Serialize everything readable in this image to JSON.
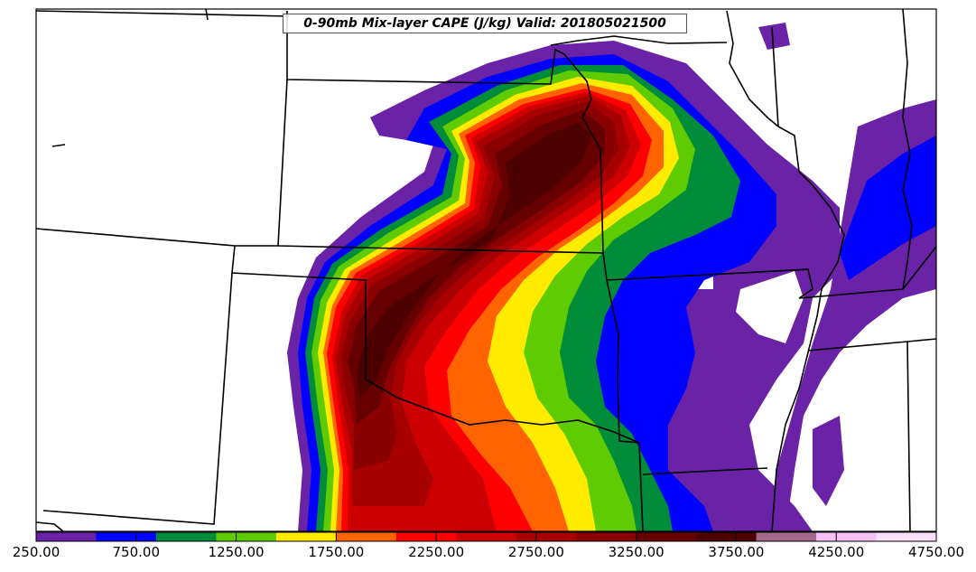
{
  "title": "0-90mb Mix-layer CAPE (J/kg) Valid: 201805021500",
  "colorbar": {
    "colors": [
      "#6a22a6",
      "#0000ff",
      "#008c38",
      "#5ecc00",
      "#ffeb00",
      "#ff6400",
      "#ff0000",
      "#cc0000",
      "#a60000",
      "#8a0000",
      "#660000",
      "#4d0000",
      "#a06a88",
      "#f5c0f5",
      "#fbe0fb"
    ],
    "tick_labels": [
      "250.00",
      "750.00",
      "1250.00",
      "1750.00",
      "2250.00",
      "2750.00",
      "3250.00",
      "3750.00",
      "4250.00",
      "4750.00"
    ],
    "min": 250,
    "max": 4750
  }
}
